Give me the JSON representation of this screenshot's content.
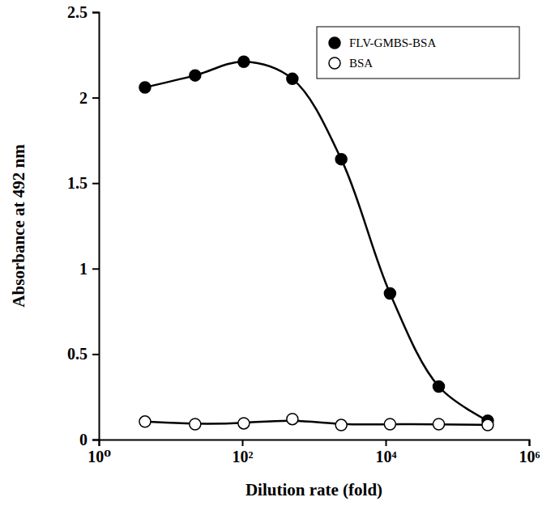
{
  "chart_data": {
    "type": "line",
    "x_label": "Dilution rate (fold)",
    "y_label": "Absorbance at 492 nm",
    "log": "x",
    "legend": "upper right",
    "x": [
      4.4,
      22,
      105,
      500,
      2400,
      11500,
      55000,
      265000
    ],
    "xlim": [
      1,
      1000000
    ],
    "xticks": [
      {
        "value": 1,
        "label": "10⁰"
      },
      {
        "value": 100,
        "label": "10²"
      },
      {
        "value": 10000,
        "label": "10⁴"
      },
      {
        "value": 1000000,
        "label": "10⁶"
      }
    ],
    "ylim": [
      0,
      2.5
    ],
    "yticks": [
      0,
      0.5,
      1,
      1.5,
      2,
      2.5
    ],
    "series": [
      {
        "name": "FLV-GMBS-BSA",
        "color": "#000000",
        "marker": "filled-circle",
        "line_style": "smooth",
        "values": [
          2.06,
          2.13,
          2.21,
          2.11,
          1.64,
          0.855,
          0.31,
          0.11
        ]
      },
      {
        "name": "BSA",
        "color": "#000000",
        "marker": "open-circle",
        "line_style": "trend",
        "values": [
          0.105,
          0.09,
          0.095,
          0.12,
          0.085,
          0.09,
          0.09,
          0.085
        ]
      }
    ]
  }
}
